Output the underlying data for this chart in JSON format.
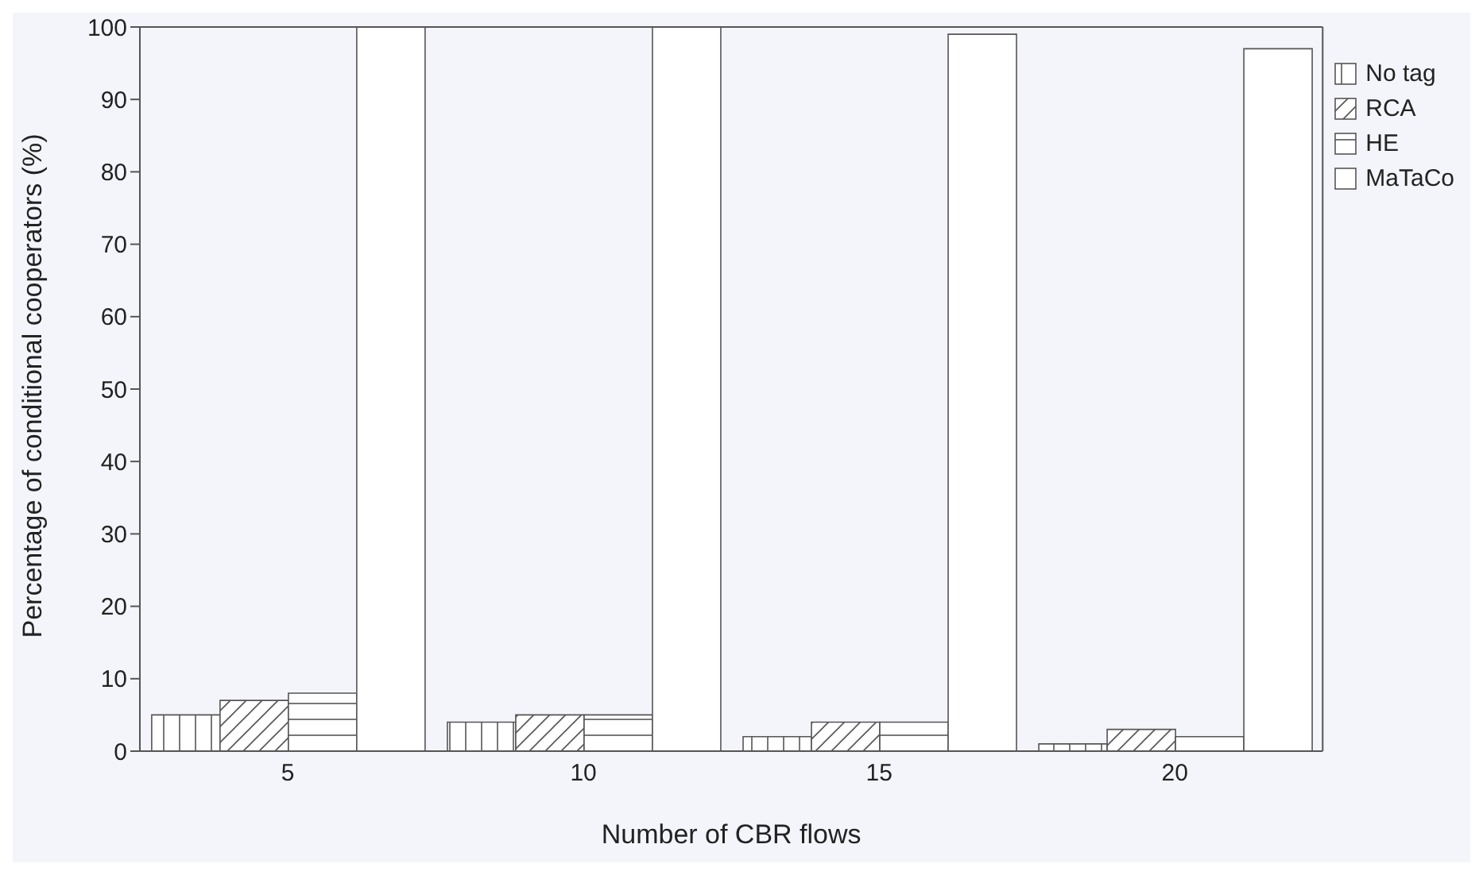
{
  "chart_data": {
    "type": "bar",
    "xlabel": "Number of CBR flows",
    "ylabel": "Percentage of conditional cooperators (%)",
    "categories": [
      "5",
      "10",
      "15",
      "20"
    ],
    "series": [
      {
        "name": "No tag",
        "color": "#555555",
        "values": [
          5,
          4,
          2,
          1
        ]
      },
      {
        "name": "RCA",
        "color": "#555555",
        "values": [
          7,
          5,
          4,
          3
        ]
      },
      {
        "name": "HE",
        "color": "#555555",
        "values": [
          8,
          5,
          4,
          2
        ]
      },
      {
        "name": "MaTaCo",
        "color": "#555555",
        "values": [
          100,
          100,
          99,
          97
        ]
      }
    ],
    "ylim": [
      0,
      100
    ],
    "yticks": [
      0,
      10,
      20,
      30,
      40,
      50,
      60,
      70,
      80,
      90,
      100
    ],
    "grid": false,
    "legend": "right"
  }
}
